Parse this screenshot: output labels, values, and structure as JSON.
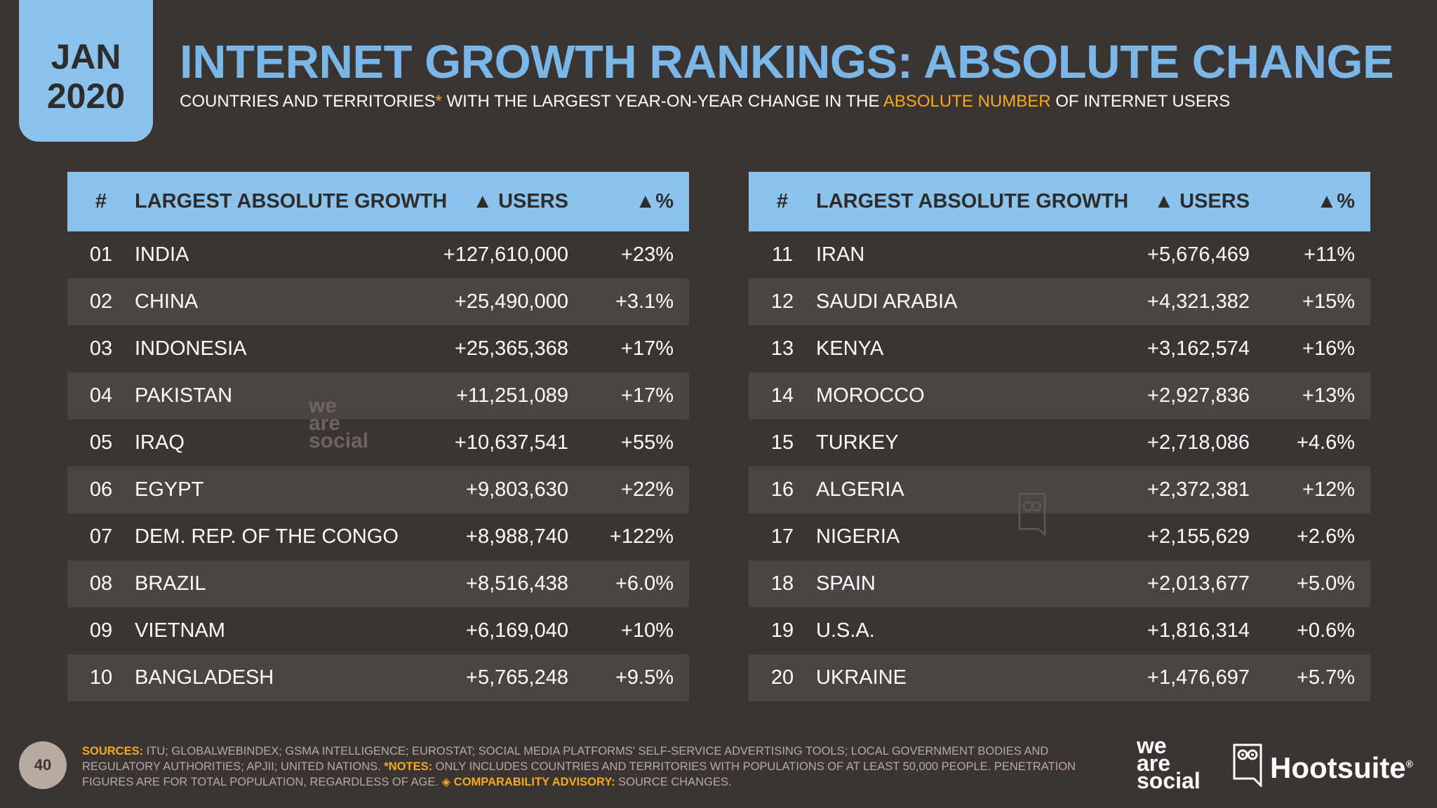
{
  "badge": {
    "month": "JAN",
    "year": "2020"
  },
  "title": "INTERNET GROWTH RANKINGS: ABSOLUTE CHANGE",
  "subtitle": {
    "part1": "COUNTRIES AND TERRITORIES",
    "asterisk": "*",
    "part2": " WITH THE LARGEST YEAR-ON-YEAR CHANGE IN THE ",
    "highlight": "ABSOLUTE NUMBER",
    "part3": " OF INTERNET USERS"
  },
  "colors": {
    "accent_blue": "#8cc3ec",
    "title_blue": "#7ab6e8",
    "orange": "#f6a821",
    "background": "#3a3532"
  },
  "table_headers": {
    "rank": "#",
    "name": "LARGEST ABSOLUTE GROWTH",
    "users": "▲ USERS",
    "pct": "▲%"
  },
  "left_rows": [
    {
      "rank": "01",
      "name": "INDIA",
      "users": "+127,610,000",
      "pct": "+23%"
    },
    {
      "rank": "02",
      "name": "CHINA",
      "users": "+25,490,000",
      "pct": "+3.1%"
    },
    {
      "rank": "03",
      "name": "INDONESIA",
      "users": "+25,365,368",
      "pct": "+17%"
    },
    {
      "rank": "04",
      "name": "PAKISTAN",
      "users": "+11,251,089",
      "pct": "+17%"
    },
    {
      "rank": "05",
      "name": "IRAQ",
      "users": "+10,637,541",
      "pct": "+55%"
    },
    {
      "rank": "06",
      "name": "EGYPT",
      "users": "+9,803,630",
      "pct": "+22%"
    },
    {
      "rank": "07",
      "name": "DEM. REP. OF THE CONGO",
      "users": "+8,988,740",
      "pct": "+122%"
    },
    {
      "rank": "08",
      "name": "BRAZIL",
      "users": "+8,516,438",
      "pct": "+6.0%"
    },
    {
      "rank": "09",
      "name": "VIETNAM",
      "users": "+6,169,040",
      "pct": "+10%"
    },
    {
      "rank": "10",
      "name": "BANGLADESH",
      "users": "+5,765,248",
      "pct": "+9.5%"
    }
  ],
  "right_rows": [
    {
      "rank": "11",
      "name": "IRAN",
      "users": "+5,676,469",
      "pct": "+11%"
    },
    {
      "rank": "12",
      "name": "SAUDI ARABIA",
      "users": "+4,321,382",
      "pct": "+15%"
    },
    {
      "rank": "13",
      "name": "KENYA",
      "users": "+3,162,574",
      "pct": "+16%"
    },
    {
      "rank": "14",
      "name": "MOROCCO",
      "users": "+2,927,836",
      "pct": "+13%"
    },
    {
      "rank": "15",
      "name": "TURKEY",
      "users": "+2,718,086",
      "pct": "+4.6%"
    },
    {
      "rank": "16",
      "name": "ALGERIA",
      "users": "+2,372,381",
      "pct": "+12%"
    },
    {
      "rank": "17",
      "name": "NIGERIA",
      "users": "+2,155,629",
      "pct": "+2.6%"
    },
    {
      "rank": "18",
      "name": "SPAIN",
      "users": "+2,013,677",
      "pct": "+5.0%"
    },
    {
      "rank": "19",
      "name": "U.S.A.",
      "users": "+1,816,314",
      "pct": "+0.6%"
    },
    {
      "rank": "20",
      "name": "UKRAINE",
      "users": "+1,476,697",
      "pct": "+5.7%"
    }
  ],
  "footer": {
    "page_number": "40",
    "sources_label": "SOURCES:",
    "sources_text": " ITU; GLOBALWEBINDEX; GSMA INTELLIGENCE; EUROSTAT; SOCIAL MEDIA PLATFORMS' SELF-SERVICE ADVERTISING TOOLS; LOCAL GOVERNMENT BODIES AND REGULATORY AUTHORITIES; APJII; UNITED NATIONS. ",
    "notes_label": "*NOTES:",
    "notes_text": " ONLY INCLUDES COUNTRIES AND TERRITORIES WITH POPULATIONS OF AT LEAST 50,000 PEOPLE. PENETRATION FIGURES ARE FOR TOTAL POPULATION, REGARDLESS OF AGE. ",
    "advisory_label": "◈ COMPARABILITY ADVISORY:",
    "advisory_text": " SOURCE CHANGES."
  },
  "watermark": {
    "line1": "we",
    "line2": "are",
    "line3": "social"
  },
  "brands": {
    "was_line1": "we",
    "was_line2": "are",
    "was_line3": "social",
    "hootsuite": "Hootsuite",
    "registered": "®"
  }
}
